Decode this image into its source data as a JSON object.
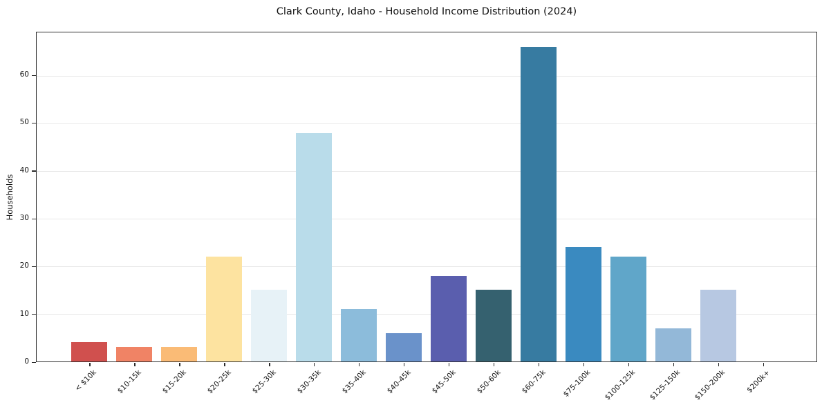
{
  "chart_data": {
    "type": "bar",
    "title": "Clark County, Idaho - Household Income Distribution (2024)",
    "xlabel": "",
    "ylabel": "Households",
    "categories": [
      "< $10k",
      "$10-15k",
      "$15-20k",
      "$20-25k",
      "$25-30k",
      "$30-35k",
      "$35-40k",
      "$40-45k",
      "$45-50k",
      "$50-60k",
      "$60-75k",
      "$75-100k",
      "$100-125k",
      "$125-150k",
      "$150-200k",
      "$200k+"
    ],
    "values": [
      4,
      3,
      3,
      22,
      15,
      48,
      11,
      6,
      18,
      15,
      66,
      24,
      22,
      7,
      15,
      0
    ],
    "bar_colors": [
      "#d0504e",
      "#f08365",
      "#fabb76",
      "#fde3a0",
      "#e7f2f7",
      "#b9dcea",
      "#8cbcdb",
      "#6a92ca",
      "#5a5eae",
      "#35616f",
      "#377ba1",
      "#3a8ac0",
      "#60a6c9",
      "#93b8d8",
      "#b7c8e2",
      "#b7c8e2"
    ],
    "ylim": [
      0,
      69.1
    ],
    "yticks": [
      0,
      10,
      20,
      30,
      40,
      50,
      60
    ],
    "grid": "horizontal",
    "legend": "none",
    "gridline_color": "#e8e8e8",
    "spine_color": "#2b2b2b",
    "background_color": "#ffffff",
    "x_tick_label_rotation_deg": 45
  }
}
